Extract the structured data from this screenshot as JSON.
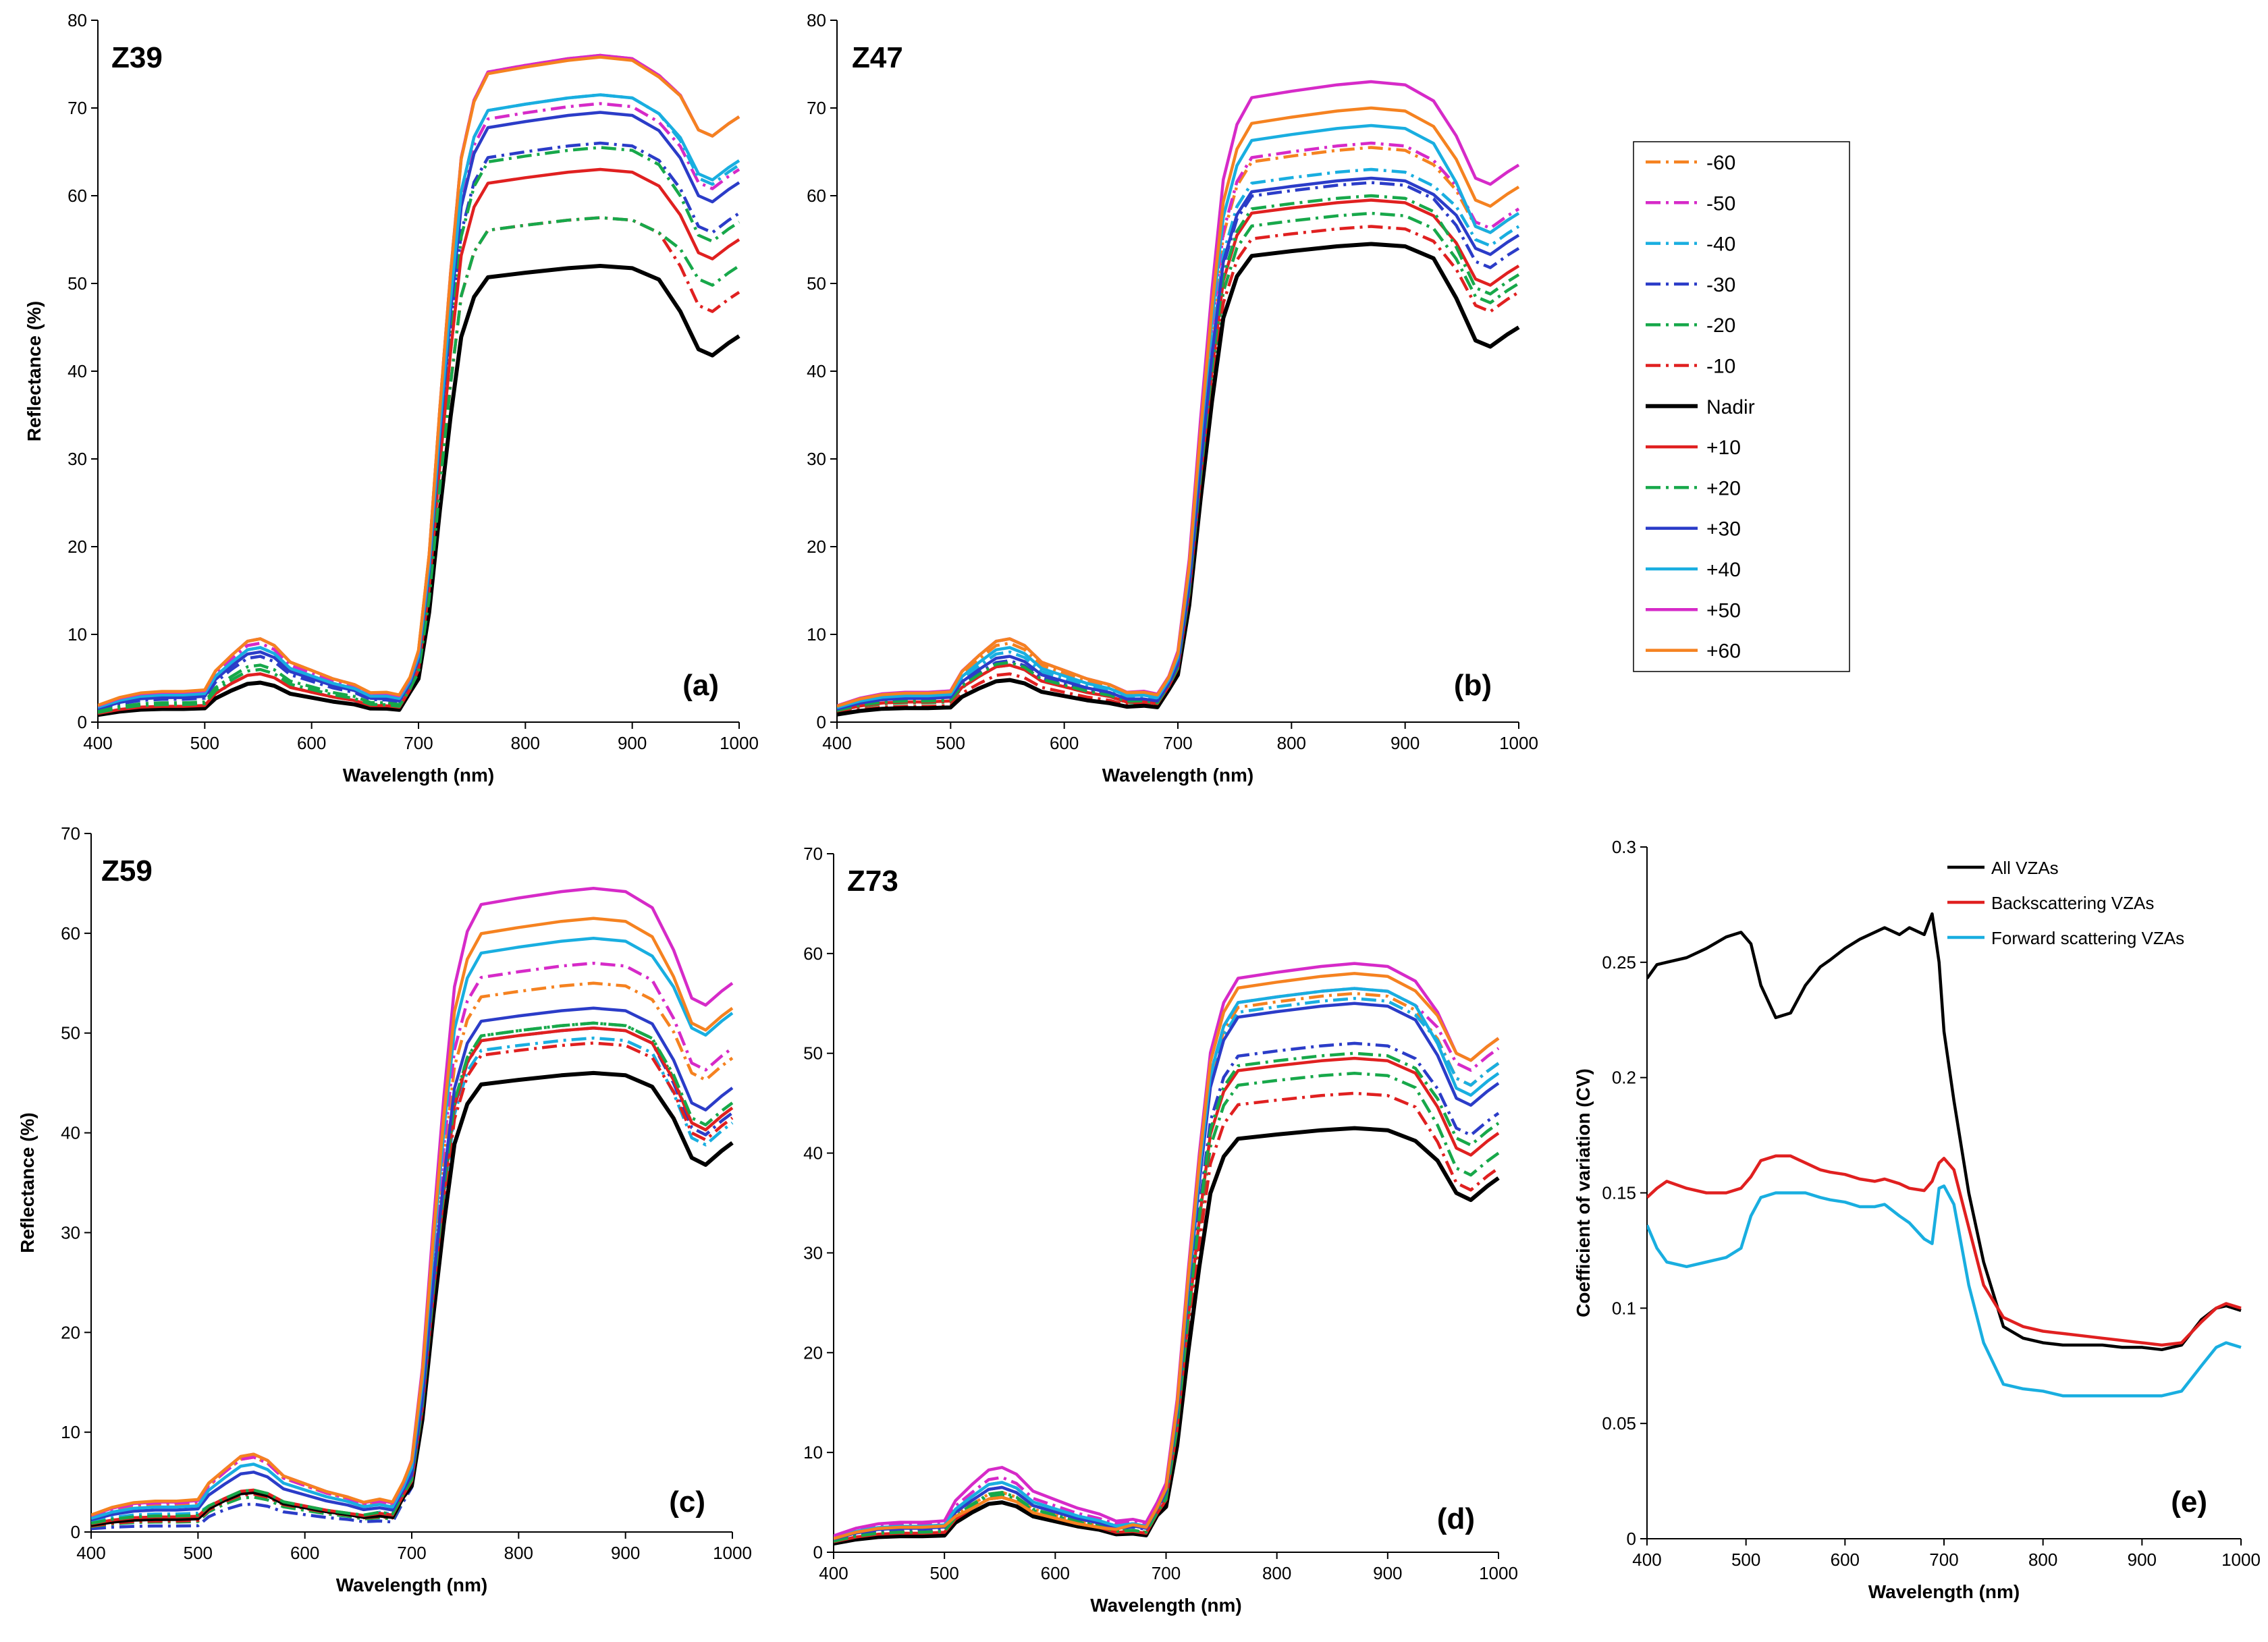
{
  "series_styles": [
    {
      "name": "-60",
      "color": "#F58220",
      "dash": "dashdot"
    },
    {
      "name": "-50",
      "color": "#D62AC8",
      "dash": "dashdot"
    },
    {
      "name": "-40",
      "color": "#19AEE0",
      "dash": "dashdot"
    },
    {
      "name": "-30",
      "color": "#2B3CC8",
      "dash": "dashdot"
    },
    {
      "name": "-20",
      "color": "#17A84A",
      "dash": "dashdot"
    },
    {
      "name": "-10",
      "color": "#E02020",
      "dash": "dashdot"
    },
    {
      "name": "Nadir",
      "color": "#000000",
      "dash": "solid",
      "width": 6
    },
    {
      "name": "+10",
      "color": "#E02020",
      "dash": "solid"
    },
    {
      "name": "+20",
      "color": "#17A84A",
      "dash": "dashdot"
    },
    {
      "name": "+30",
      "color": "#2B3CC8",
      "dash": "solid"
    },
    {
      "name": "+40",
      "color": "#19AEE0",
      "dash": "solid"
    },
    {
      "name": "+50",
      "color": "#D62AC8",
      "dash": "solid"
    },
    {
      "name": "+60",
      "color": "#F58220",
      "dash": "solid"
    }
  ],
  "chart_data": [
    {
      "type": "line",
      "zone_label": "Z39",
      "panel_label": "(a)",
      "xlabel": "Wavelength (nm)",
      "ylabel": "Reflectance (%)",
      "xlim": [
        400,
        1000
      ],
      "ylim": [
        0,
        80
      ],
      "xticks": [
        400,
        500,
        600,
        700,
        800,
        900,
        1000
      ],
      "yticks": [
        0,
        10,
        20,
        30,
        40,
        50,
        60,
        70,
        80
      ],
      "series_params": [
        {
          "name": "-60",
          "vis": 3.4,
          "green": 9.5,
          "red": 3.0,
          "nir": 76.0,
          "end": 69.0
        },
        {
          "name": "-50",
          "vis": 3.2,
          "green": 9.0,
          "red": 2.8,
          "nir": 70.5,
          "end": 63.0
        },
        {
          "name": "-40",
          "vis": 3.0,
          "green": 8.5,
          "red": 2.6,
          "nir": 71.5,
          "end": 63.5
        },
        {
          "name": "-30",
          "vis": 2.6,
          "green": 7.5,
          "red": 2.3,
          "nir": 66.0,
          "end": 58.0
        },
        {
          "name": "-20",
          "vis": 2.2,
          "green": 6.5,
          "red": 2.0,
          "nir": 65.5,
          "end": 57.0
        },
        {
          "name": "-10",
          "vis": 1.7,
          "green": 5.5,
          "red": 1.6,
          "nir": 57.5,
          "end": 49.0
        },
        {
          "name": "Nadir",
          "vis": 1.5,
          "green": 4.5,
          "red": 1.4,
          "nir": 52.0,
          "end": 44.0
        },
        {
          "name": "+10",
          "vis": 1.8,
          "green": 5.5,
          "red": 1.7,
          "nir": 63.0,
          "end": 55.0
        },
        {
          "name": "+20",
          "vis": 2.0,
          "green": 6.0,
          "red": 1.8,
          "nir": 57.5,
          "end": 52.0
        },
        {
          "name": "+30",
          "vis": 2.8,
          "green": 8.0,
          "red": 2.4,
          "nir": 69.5,
          "end": 61.5
        },
        {
          "name": "+40",
          "vis": 3.1,
          "green": 8.5,
          "red": 2.7,
          "nir": 71.5,
          "end": 64.0
        },
        {
          "name": "+50",
          "vis": 3.4,
          "green": 9.5,
          "red": 3.0,
          "nir": 76.0,
          "end": 69.0
        },
        {
          "name": "+60",
          "vis": 3.5,
          "green": 9.5,
          "red": 3.1,
          "nir": 75.8,
          "end": 69.0
        }
      ]
    },
    {
      "type": "line",
      "zone_label": "Z47",
      "panel_label": "(b)",
      "xlabel": "Wavelength (nm)",
      "ylabel": "",
      "xlim": [
        400,
        1000
      ],
      "ylim": [
        0,
        80
      ],
      "xticks": [
        400,
        500,
        600,
        700,
        800,
        900,
        1000
      ],
      "yticks": [
        0,
        10,
        20,
        30,
        40,
        50,
        60,
        70,
        80
      ],
      "series_params": [
        {
          "name": "-60",
          "vis": 3.2,
          "green": 9.0,
          "red": 3.0,
          "nir": 65.5,
          "end": 58.0
        },
        {
          "name": "-50",
          "vis": 3.3,
          "green": 9.5,
          "red": 3.1,
          "nir": 66.0,
          "end": 58.5
        },
        {
          "name": "-40",
          "vis": 2.8,
          "green": 8.0,
          "red": 2.6,
          "nir": 63.0,
          "end": 56.5
        },
        {
          "name": "-30",
          "vis": 2.5,
          "green": 7.0,
          "red": 2.3,
          "nir": 61.5,
          "end": 54.0
        },
        {
          "name": "-20",
          "vis": 2.2,
          "green": 6.5,
          "red": 2.0,
          "nir": 58.0,
          "end": 50.0
        },
        {
          "name": "-10",
          "vis": 1.8,
          "green": 5.5,
          "red": 1.8,
          "nir": 56.5,
          "end": 49.0
        },
        {
          "name": "Nadir",
          "vis": 1.6,
          "green": 4.8,
          "red": 1.7,
          "nir": 54.5,
          "end": 45.0
        },
        {
          "name": "+10",
          "vis": 2.3,
          "green": 6.5,
          "red": 2.1,
          "nir": 59.5,
          "end": 52.0
        },
        {
          "name": "+20",
          "vis": 2.4,
          "green": 6.8,
          "red": 2.2,
          "nir": 60.0,
          "end": 51.0
        },
        {
          "name": "+30",
          "vis": 2.7,
          "green": 7.5,
          "red": 2.4,
          "nir": 62.0,
          "end": 55.5
        },
        {
          "name": "+40",
          "vis": 3.0,
          "green": 8.5,
          "red": 2.8,
          "nir": 68.0,
          "end": 58.0
        },
        {
          "name": "+50",
          "vis": 3.4,
          "green": 9.5,
          "red": 3.2,
          "nir": 73.0,
          "end": 63.5
        },
        {
          "name": "+60",
          "vis": 3.3,
          "green": 9.5,
          "red": 3.1,
          "nir": 70.0,
          "end": 61.0
        }
      ]
    },
    {
      "type": "line",
      "zone_label": "Z59",
      "panel_label": "(c)",
      "xlabel": "Wavelength (nm)",
      "ylabel": "Reflectance (%)",
      "xlim": [
        400,
        1000
      ],
      "ylim": [
        0,
        70
      ],
      "xticks": [
        400,
        500,
        600,
        700,
        800,
        900,
        1000
      ],
      "yticks": [
        0,
        10,
        20,
        30,
        40,
        50,
        60,
        70
      ],
      "series_params": [
        {
          "name": "-60",
          "vis": 2.7,
          "green": 7.5,
          "red": 2.6,
          "nir": 55.0,
          "end": 47.5
        },
        {
          "name": "-50",
          "vis": 2.9,
          "green": 7.5,
          "red": 2.8,
          "nir": 57.0,
          "end": 48.5
        },
        {
          "name": "-40",
          "vis": 1.8,
          "green": 4.0,
          "red": 1.8,
          "nir": 49.5,
          "end": 41.0
        },
        {
          "name": "-30",
          "vis": 0.6,
          "green": 2.8,
          "red": 1.0,
          "nir": 50.5,
          "end": 42.0
        },
        {
          "name": "-20",
          "vis": 1.0,
          "green": 3.5,
          "red": 1.3,
          "nir": 51.0,
          "end": 42.5
        },
        {
          "name": "-10",
          "vis": 1.1,
          "green": 3.8,
          "red": 1.4,
          "nir": 49.0,
          "end": 41.5
        },
        {
          "name": "Nadir",
          "vis": 1.3,
          "green": 4.0,
          "red": 1.5,
          "nir": 46.0,
          "end": 39.0
        },
        {
          "name": "+10",
          "vis": 1.5,
          "green": 4.2,
          "red": 1.7,
          "nir": 50.5,
          "end": 42.5
        },
        {
          "name": "+20",
          "vis": 1.6,
          "green": 4.2,
          "red": 1.8,
          "nir": 51.0,
          "end": 43.0
        },
        {
          "name": "+30",
          "vis": 2.2,
          "green": 6.0,
          "red": 2.2,
          "nir": 52.5,
          "end": 44.5
        },
        {
          "name": "+40",
          "vis": 2.5,
          "green": 6.8,
          "red": 2.5,
          "nir": 59.5,
          "end": 52.0
        },
        {
          "name": "+50",
          "vis": 3.0,
          "green": 7.8,
          "red": 2.9,
          "nir": 64.5,
          "end": 55.0
        },
        {
          "name": "+60",
          "vis": 3.1,
          "green": 7.8,
          "red": 3.0,
          "nir": 61.5,
          "end": 52.5
        }
      ]
    },
    {
      "type": "line",
      "zone_label": "Z73",
      "panel_label": "(d)",
      "xlabel": "Wavelength (nm)",
      "ylabel": "",
      "xlim": [
        400,
        1000
      ],
      "ylim": [
        0,
        70
      ],
      "xticks": [
        400,
        500,
        600,
        700,
        800,
        900,
        1000
      ],
      "yticks": [
        0,
        10,
        20,
        30,
        40,
        50,
        60,
        70
      ],
      "series_params": [
        {
          "name": "-60",
          "vis": 2.6,
          "green": 6.0,
          "red": 2.6,
          "nir": 56.0,
          "end": 49.0
        },
        {
          "name": "-50",
          "vis": 2.8,
          "green": 7.5,
          "red": 2.8,
          "nir": 56.5,
          "end": 50.5
        },
        {
          "name": "-40",
          "vis": 2.6,
          "green": 7.0,
          "red": 2.6,
          "nir": 55.5,
          "end": 49.0
        },
        {
          "name": "-30",
          "vis": 2.3,
          "green": 6.5,
          "red": 2.3,
          "nir": 51.0,
          "end": 44.0
        },
        {
          "name": "-20",
          "vis": 2.0,
          "green": 6.0,
          "red": 2.0,
          "nir": 48.0,
          "end": 40.0
        },
        {
          "name": "-10",
          "vis": 1.8,
          "green": 5.5,
          "red": 1.8,
          "nir": 46.0,
          "end": 38.5
        },
        {
          "name": "Nadir",
          "vis": 1.6,
          "green": 5.0,
          "red": 1.7,
          "nir": 42.5,
          "end": 37.5
        },
        {
          "name": "+10",
          "vis": 1.9,
          "green": 5.5,
          "red": 1.9,
          "nir": 49.5,
          "end": 42.0
        },
        {
          "name": "+20",
          "vis": 2.0,
          "green": 5.8,
          "red": 2.0,
          "nir": 50.0,
          "end": 43.0
        },
        {
          "name": "+30",
          "vis": 2.4,
          "green": 6.5,
          "red": 2.4,
          "nir": 55.0,
          "end": 47.0
        },
        {
          "name": "+40",
          "vis": 2.6,
          "green": 7.0,
          "red": 2.6,
          "nir": 56.5,
          "end": 48.0
        },
        {
          "name": "+50",
          "vis": 3.0,
          "green": 8.5,
          "red": 3.0,
          "nir": 59.0,
          "end": 51.5
        },
        {
          "name": "+60",
          "vis": 2.5,
          "green": 5.5,
          "red": 2.5,
          "nir": 58.0,
          "end": 51.5
        }
      ]
    },
    {
      "type": "line",
      "zone_label": "",
      "panel_label": "(e)",
      "xlabel": "Wavelength (nm)",
      "ylabel": "Coefficient of variation (CV)",
      "xlim": [
        400,
        1000
      ],
      "ylim": [
        0,
        0.3
      ],
      "xticks": [
        400,
        500,
        600,
        700,
        800,
        900,
        1000
      ],
      "yticks": [
        0,
        0.05,
        0.1,
        0.15,
        0.2,
        0.25,
        0.3
      ],
      "legend_position": "top-right",
      "x": [
        400,
        410,
        420,
        440,
        460,
        480,
        495,
        505,
        515,
        530,
        545,
        560,
        575,
        585,
        600,
        615,
        630,
        640,
        655,
        665,
        680,
        688,
        695,
        700,
        710,
        725,
        740,
        760,
        780,
        800,
        820,
        840,
        860,
        880,
        900,
        920,
        940,
        960,
        975,
        985,
        1000
      ],
      "series": [
        {
          "name": "All VZAs",
          "color": "#000000",
          "values": [
            0.243,
            0.249,
            0.25,
            0.252,
            0.256,
            0.261,
            0.263,
            0.258,
            0.24,
            0.226,
            0.228,
            0.24,
            0.248,
            0.251,
            0.256,
            0.26,
            0.263,
            0.265,
            0.262,
            0.265,
            0.262,
            0.271,
            0.25,
            0.22,
            0.19,
            0.15,
            0.12,
            0.092,
            0.087,
            0.085,
            0.084,
            0.084,
            0.084,
            0.083,
            0.083,
            0.082,
            0.084,
            0.095,
            0.1,
            0.101,
            0.099
          ]
        },
        {
          "name": "Backscattering VZAs",
          "color": "#E02020",
          "values": [
            0.148,
            0.152,
            0.155,
            0.152,
            0.15,
            0.15,
            0.152,
            0.157,
            0.164,
            0.166,
            0.166,
            0.163,
            0.16,
            0.159,
            0.158,
            0.156,
            0.155,
            0.156,
            0.154,
            0.152,
            0.151,
            0.155,
            0.163,
            0.165,
            0.16,
            0.135,
            0.11,
            0.096,
            0.092,
            0.09,
            0.089,
            0.088,
            0.087,
            0.086,
            0.085,
            0.084,
            0.085,
            0.094,
            0.1,
            0.102,
            0.1
          ]
        },
        {
          "name": "Forward scattering VZAs",
          "color": "#19AEE0",
          "values": [
            0.136,
            0.126,
            0.12,
            0.118,
            0.12,
            0.122,
            0.126,
            0.14,
            0.148,
            0.15,
            0.15,
            0.15,
            0.148,
            0.147,
            0.146,
            0.144,
            0.144,
            0.145,
            0.14,
            0.137,
            0.13,
            0.128,
            0.152,
            0.153,
            0.145,
            0.11,
            0.085,
            0.067,
            0.065,
            0.064,
            0.062,
            0.062,
            0.062,
            0.062,
            0.062,
            0.062,
            0.064,
            0.075,
            0.083,
            0.085,
            0.083
          ]
        }
      ]
    }
  ]
}
